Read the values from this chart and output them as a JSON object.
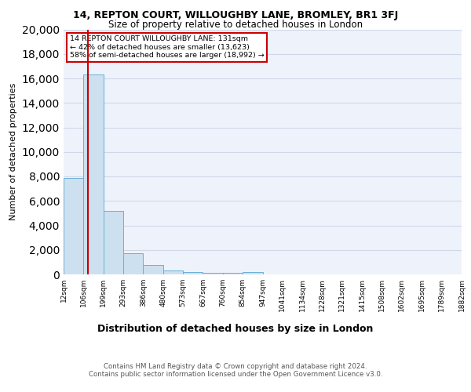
{
  "title1": "14, REPTON COURT, WILLOUGHBY LANE, BROMLEY, BR1 3FJ",
  "title2": "Size of property relative to detached houses in London",
  "xlabel": "Distribution of detached houses by size in London",
  "ylabel": "Number of detached properties",
  "footnote1": "Contains HM Land Registry data © Crown copyright and database right 2024.",
  "footnote2": "Contains public sector information licensed under the Open Government Licence v3.0.",
  "annotation_line1": "14 REPTON COURT WILLOUGHBY LANE: 131sqm",
  "annotation_line2": "← 42% of detached houses are smaller (13,623)",
  "annotation_line3": "58% of semi-detached houses are larger (18,992) →",
  "bar_color": "#cce0f0",
  "bar_edge_color": "#6ab0d8",
  "redline_color": "#cc0000",
  "annotation_box_color": "#cc0000",
  "grid_color": "#d0d8e8",
  "background_color": "#eef2fa",
  "bins": [
    "12sqm",
    "106sqm",
    "199sqm",
    "293sqm",
    "386sqm",
    "480sqm",
    "573sqm",
    "667sqm",
    "760sqm",
    "854sqm",
    "947sqm",
    "1041sqm",
    "1134sqm",
    "1228sqm",
    "1321sqm",
    "1415sqm",
    "1508sqm",
    "1602sqm",
    "1695sqm",
    "1789sqm",
    "1882sqm"
  ],
  "values": [
    7900,
    16300,
    5200,
    1750,
    750,
    350,
    175,
    100,
    100,
    175,
    0,
    0,
    0,
    0,
    0,
    0,
    0,
    0,
    0,
    0
  ],
  "ylim": [
    0,
    20000
  ],
  "yticks": [
    0,
    2000,
    4000,
    6000,
    8000,
    10000,
    12000,
    14000,
    16000,
    18000,
    20000
  ],
  "redline_x": 1.22
}
